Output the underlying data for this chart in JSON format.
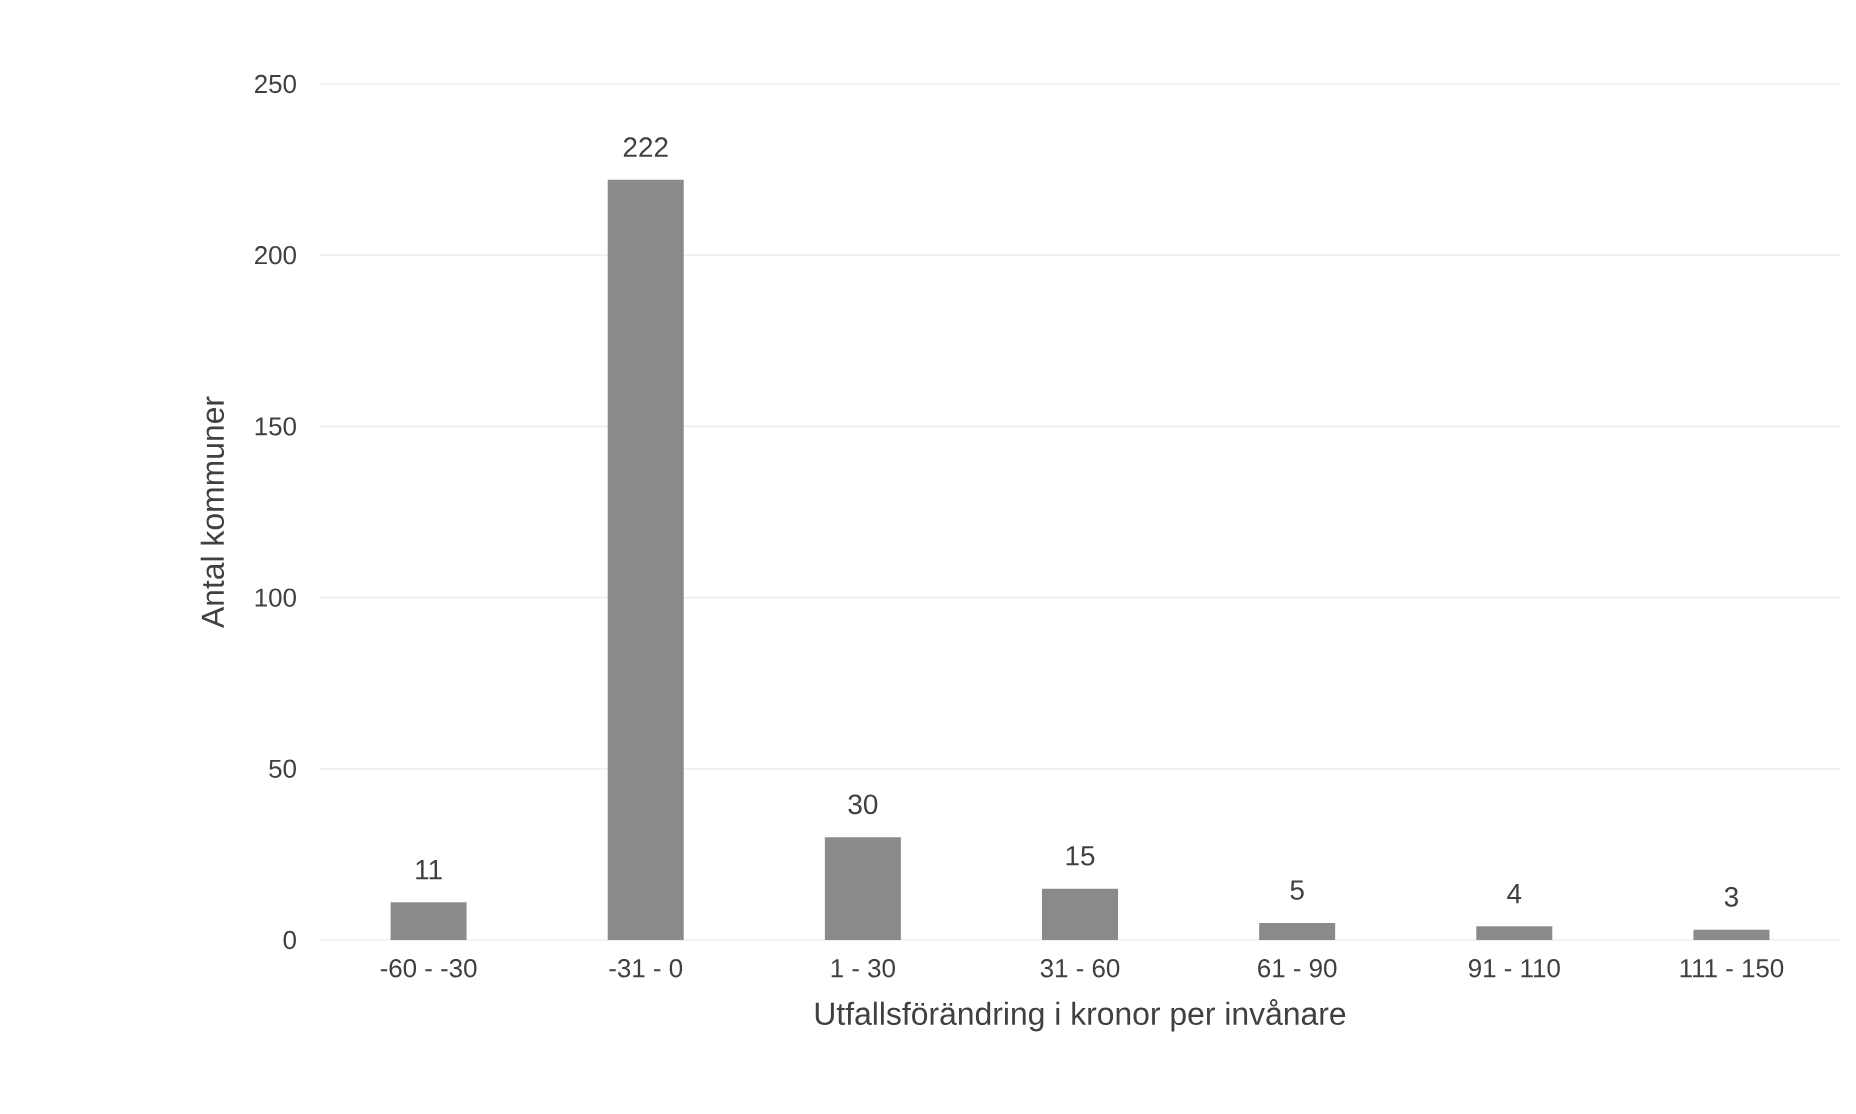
{
  "chart_data": {
    "type": "bar",
    "xlabel": "Utfallsförändring i kronor per invånare",
    "ylabel": "Antal kommuner",
    "categories": [
      "-60 - -30",
      "-31 - 0",
      "1 - 30",
      "31 - 60",
      "61 - 90",
      "91 - 110",
      "111 - 150"
    ],
    "values": [
      11,
      222,
      30,
      15,
      5,
      4,
      3
    ],
    "color": "#8a8a8a",
    "ylim": [
      0,
      250
    ],
    "yticks": [
      0,
      50,
      100,
      150,
      200,
      250
    ],
    "grid": "y",
    "data_labels": true
  }
}
